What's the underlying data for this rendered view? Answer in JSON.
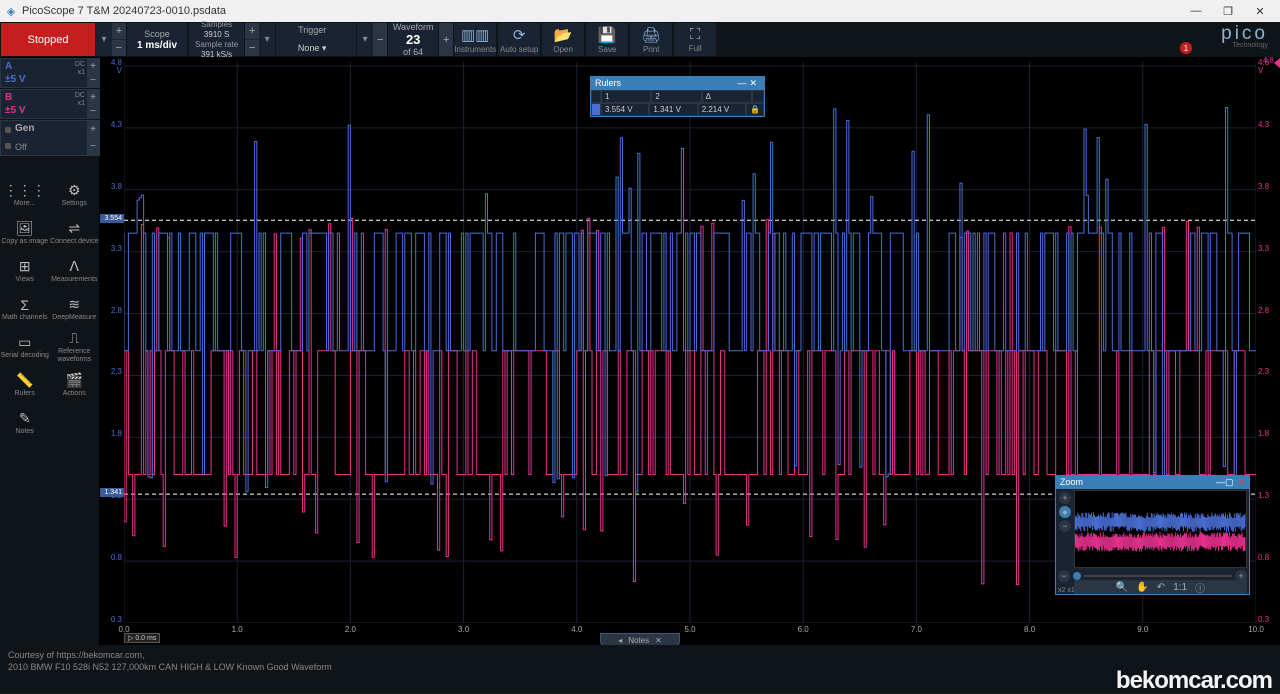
{
  "window": {
    "title": "PicoScope 7 T&M 20240723-0010.psdata"
  },
  "toolbar": {
    "status": "Stopped",
    "scope": {
      "label": "Scope",
      "timebase": "1 ms/div"
    },
    "samples": {
      "label": "Samples",
      "count": "3910 S",
      "rate_label": "Sample rate",
      "rate": "391 kS/s"
    },
    "trigger": {
      "label": "Trigger",
      "mode": "None"
    },
    "waveform": {
      "label": "Waveform",
      "current": "23",
      "total": "of 64"
    },
    "buttons": {
      "instruments": "Instruments",
      "autosetup": "Auto setup",
      "open": "Open",
      "save": "Save",
      "print": "Print",
      "full": "Full"
    },
    "logo": {
      "brand": "pico",
      "sub": "Technology",
      "badge": "1"
    }
  },
  "channels": {
    "a": {
      "name": "A",
      "range": "±5 V",
      "coupling": "DC",
      "mult": "x1",
      "color": "#4a6fd4"
    },
    "b": {
      "name": "B",
      "range": "±5 V",
      "coupling": "DC",
      "mult": "x1",
      "color": "#e8318f"
    },
    "gen": {
      "name": "Gen",
      "state": "Off"
    }
  },
  "tools": [
    {
      "id": "more",
      "label": "More...",
      "icon": "⋮⋮⋮"
    },
    {
      "id": "settings",
      "label": "Settings",
      "icon": "⚙"
    },
    {
      "id": "copyimg",
      "label": "Copy as image",
      "icon": "🖼"
    },
    {
      "id": "connect",
      "label": "Connect device",
      "icon": "⇌"
    },
    {
      "id": "views",
      "label": "Views",
      "icon": "⊞"
    },
    {
      "id": "measurements",
      "label": "Measurements",
      "icon": "ᐱ"
    },
    {
      "id": "math",
      "label": "Math channels",
      "icon": "Σ"
    },
    {
      "id": "deepmeasure",
      "label": "DeepMeasure",
      "icon": "≋"
    },
    {
      "id": "serial",
      "label": "Serial decoding",
      "icon": "▭"
    },
    {
      "id": "refwave",
      "label": "Reference waveforms",
      "icon": "⎍"
    },
    {
      "id": "rulers",
      "label": "Rulers",
      "icon": "📏"
    },
    {
      "id": "actions",
      "label": "Actions",
      "icon": "🎬"
    },
    {
      "id": "notes",
      "label": "Notes",
      "icon": "✎"
    }
  ],
  "chart": {
    "type": "oscilloscope",
    "background": "#000000",
    "grid_color": "#1a2332",
    "xlim": [
      0,
      10
    ],
    "x_unit": "ms",
    "xtick_step": 1,
    "ylim_a": [
      0.3,
      4.8
    ],
    "y_unit": "V",
    "yticks": [
      0.3,
      0.8,
      1.3,
      1.8,
      2.3,
      2.8,
      3.3,
      3.8,
      4.3,
      4.8
    ],
    "rulers": {
      "r1": {
        "voltage": 3.554,
        "label": "3.554"
      },
      "r2": {
        "voltage": 1.341,
        "label": "1.341"
      }
    },
    "cursor_x": {
      "value": "0.0 ms"
    },
    "series_a": {
      "color": "#4a6fd4",
      "label": "A",
      "baseline_high": 3.45,
      "baseline_low": 2.5,
      "spike_high_min": 3.7,
      "spike_high_max": 4.5,
      "spike_low_min": 1.35,
      "spike_low_max": 1.6
    },
    "series_b": {
      "color": "#e8318f",
      "label": "B",
      "baseline_high": 2.5,
      "baseline_low": 1.5,
      "spike_high_min": 3.4,
      "spike_high_max": 3.6,
      "spike_low_min": 0.6,
      "spike_low_max": 1.3
    },
    "right_marker": {
      "value": "4.8",
      "unit": "V",
      "color": "#e8318f"
    }
  },
  "rulers_panel": {
    "title": "Rulers",
    "headers": [
      "1",
      "2",
      "Δ"
    ],
    "row": [
      "3.554 V",
      "1.341 V",
      "2.214 V"
    ],
    "lock_icon": "🔒"
  },
  "zoom_panel": {
    "title": "Zoom",
    "x_label": "x2 x1",
    "icons": [
      "🔍",
      "✋",
      "↶",
      "1:1",
      "ⓘ"
    ]
  },
  "notes_tab": {
    "label": "Notes"
  },
  "footer": {
    "line1": "Courtesy of https://bekomcar.com,",
    "line2": "2010 BMW F10 528i N52 127,000km CAN HIGH & LOW Known Good Waveform",
    "watermark": "bekomcar.com"
  }
}
